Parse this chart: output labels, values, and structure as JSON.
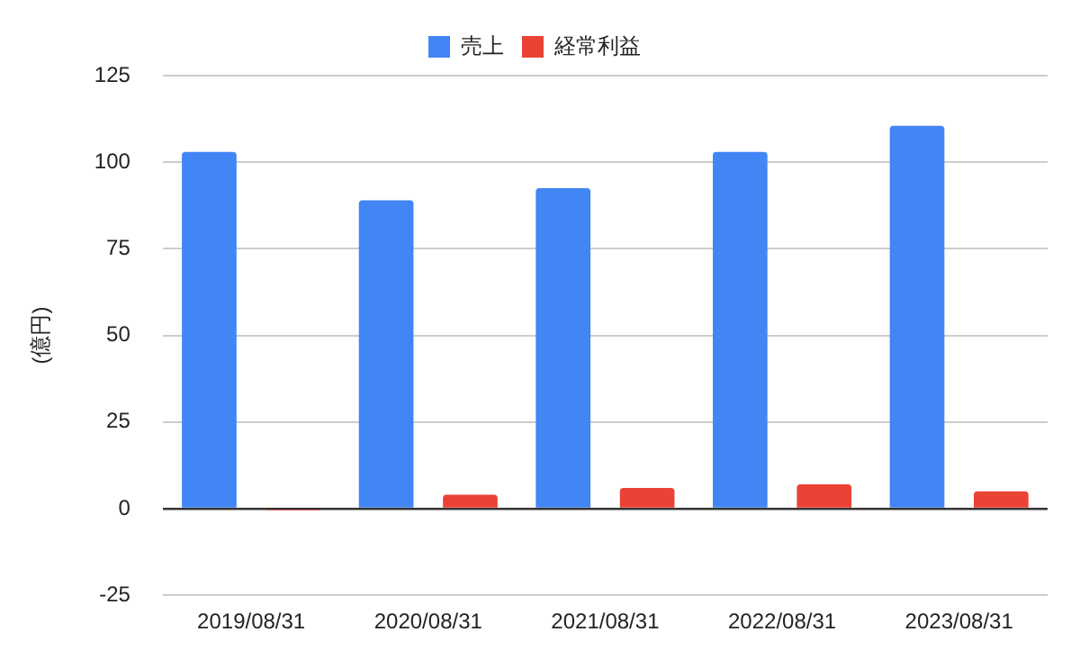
{
  "chart_data": {
    "type": "bar",
    "ylabel": "(億円)",
    "categories": [
      "2019/08/31",
      "2020/08/31",
      "2021/08/31",
      "2022/08/31",
      "2023/08/31"
    ],
    "series": [
      {
        "name": "売上",
        "color": "#4285f4",
        "values": [
          103,
          89,
          92.5,
          103,
          110.5
        ]
      },
      {
        "name": "経常利益",
        "color": "#ea4335",
        "values": [
          -0.5,
          4,
          6,
          7,
          5
        ]
      }
    ],
    "ylim": [
      -25,
      125
    ],
    "yticks": [
      -25,
      0,
      25,
      50,
      75,
      100,
      125
    ],
    "grid": "y",
    "legend": "top"
  }
}
